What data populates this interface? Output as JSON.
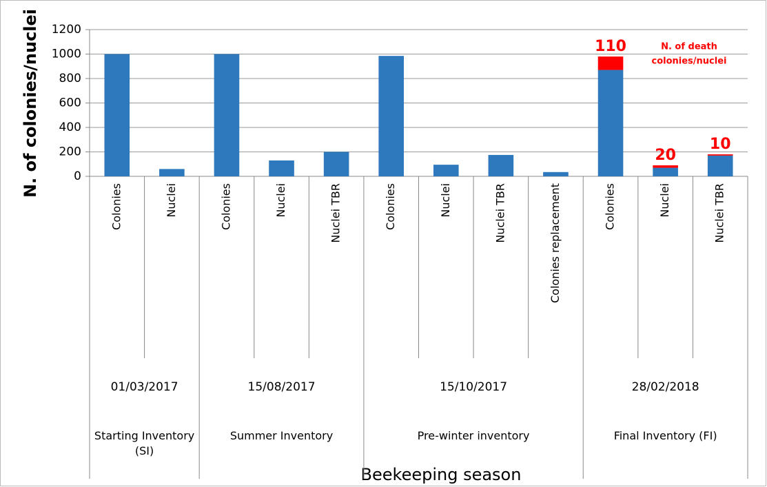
{
  "chart_data": {
    "type": "stacked_bar",
    "y_label": "N. of colonies/nuclei",
    "x_label": "Beekeeping season",
    "categories": [
      "Colonies",
      "Nuclei",
      "Colonies",
      "Nuclei",
      "Nuclei TBR",
      "Colonies",
      "Nuclei",
      "Nuclei TBR",
      "Colonies replacement",
      "Colonies",
      "Nuclei",
      "Nuclei TBR"
    ],
    "groups": [
      {
        "date": "01/03/2017",
        "name": "Starting Inventory (SI)",
        "span": 2
      },
      {
        "date": "15/08/2017",
        "name": "Summer Inventory",
        "span": 3
      },
      {
        "date": "15/10/2017",
        "name": "Pre-winter inventory",
        "span": 4
      },
      {
        "date": "28/02/2018",
        "name": "Final Inventory (FI)",
        "span": 3
      }
    ],
    "series": [
      {
        "color": "#2e78bd",
        "values": [
          1000,
          60,
          1000,
          130,
          200,
          985,
          95,
          175,
          35,
          870,
          70,
          170
        ]
      },
      {
        "color": "#ff0000",
        "values": [
          null,
          null,
          null,
          null,
          null,
          null,
          null,
          null,
          null,
          110,
          20,
          10
        ]
      }
    ],
    "annotation": [
      "N. of death",
      "colonies/nuclei"
    ],
    "ylim": [
      0,
      1200
    ],
    "yticks": [
      0,
      200,
      400,
      600,
      800,
      1000,
      1200
    ],
    "grid": true
  }
}
